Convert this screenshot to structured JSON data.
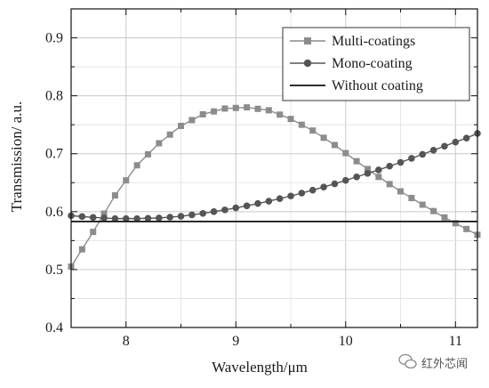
{
  "chart_data": {
    "type": "line",
    "xlabel": "Wavelength/μm",
    "ylabel": "Transmission/ a.u.",
    "xlim": [
      7.5,
      11.2
    ],
    "ylim": [
      0.4,
      0.95
    ],
    "x_ticks": [
      "8",
      "9",
      "10",
      "11"
    ],
    "x_tick_values": [
      8,
      9,
      10,
      11
    ],
    "y_ticks": [
      "0.4",
      "0.5",
      "0.6",
      "0.7",
      "0.8",
      "0.9"
    ],
    "y_tick_values": [
      0.4,
      0.5,
      0.6,
      0.7,
      0.8,
      0.9
    ],
    "grid": true,
    "legend_position": "top-right",
    "series": [
      {
        "name": "Multi-coatings",
        "marker": "square",
        "color": "#8c8c8c",
        "x": [
          7.5,
          7.7,
          7.9,
          8.1,
          8.3,
          8.5,
          8.7,
          8.9,
          9.1,
          9.3,
          9.5,
          9.7,
          9.9,
          10.1,
          10.3,
          10.5,
          10.7,
          10.9,
          11.1,
          11.2
        ],
        "y": [
          0.505,
          0.565,
          0.628,
          0.68,
          0.718,
          0.748,
          0.768,
          0.778,
          0.78,
          0.775,
          0.76,
          0.74,
          0.715,
          0.687,
          0.66,
          0.635,
          0.612,
          0.59,
          0.57,
          0.56
        ]
      },
      {
        "name": "Mono-coating",
        "marker": "circle",
        "color": "#555555",
        "x": [
          7.5,
          7.7,
          7.9,
          8.1,
          8.3,
          8.5,
          8.7,
          8.9,
          9.1,
          9.3,
          9.5,
          9.7,
          9.9,
          10.1,
          10.3,
          10.5,
          10.7,
          10.9,
          11.1,
          11.2
        ],
        "y": [
          0.593,
          0.59,
          0.588,
          0.588,
          0.589,
          0.592,
          0.597,
          0.603,
          0.61,
          0.618,
          0.627,
          0.637,
          0.648,
          0.66,
          0.672,
          0.685,
          0.699,
          0.713,
          0.727,
          0.735
        ]
      },
      {
        "name": "Without coating",
        "marker": "none",
        "color": "#111111",
        "x": [
          7.5,
          11.2
        ],
        "y": [
          0.583,
          0.583
        ]
      }
    ]
  },
  "watermark": {
    "icon": "wechat-icon",
    "text": "红外芯闻"
  }
}
